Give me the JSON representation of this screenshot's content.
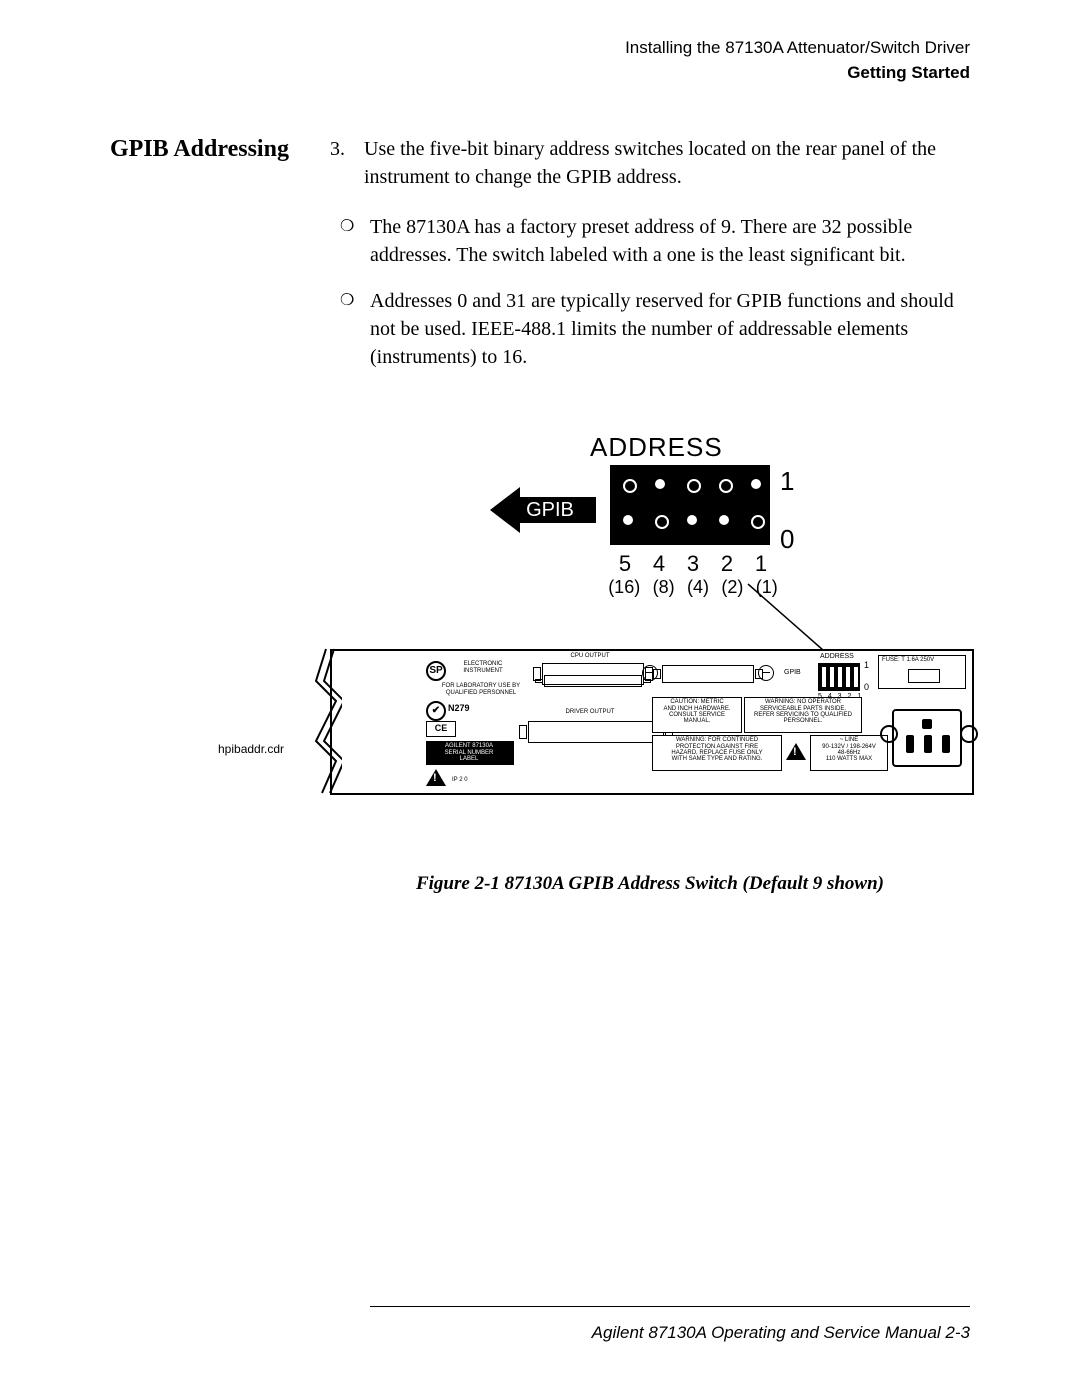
{
  "header": {
    "line1": "Installing the 87130A Attenuator/Switch Driver",
    "line2": "Getting Started"
  },
  "side_heading": "GPIB Addressing",
  "step": {
    "number": "3.",
    "text": "Use the five-bit binary address switches located on the rear panel of the instrument to change the GPIB address."
  },
  "bullets": [
    "The 87130A has a factory preset address of 9. There are 32 possible addresses. The switch labeled with a one is the least significant bit.",
    "Addresses 0 and 31 are typically reserved for GPIB functions and should not be used. IEEE-488.1 limits the number of addressable elements (instruments) to 16."
  ],
  "figure": {
    "address_title": "ADDRESS",
    "gpib_label": "GPIB",
    "one_label": "1",
    "zero_label": "0",
    "bit_numbers": [
      "5",
      "4",
      "3",
      "2",
      "1"
    ],
    "bit_weights": [
      "(16)",
      "(8)",
      "(4)",
      "(2)",
      "(1)"
    ],
    "switch_default_value": 9,
    "switch_bits_up": [
      false,
      true,
      false,
      false,
      true
    ],
    "caption": "Figure 2-1    87130A GPIB Address Switch (Default 9 shown)",
    "source_file_label": "hpibaddr.cdr",
    "panel": {
      "cpu_output_label": "CPU OUTPUT",
      "driver_output_label": "DRIVER OUTPUT",
      "electronic_instrument_label": "ELECTRONIC\nINSTRUMENT",
      "lab_use_label": "FOR LABORATORY USE BY\nQUALIFIED PERSONNEL",
      "n279": "N279",
      "ce": "CE",
      "model_label": "AGILENT 87130A\nSERIAL NUMBER\nLABEL",
      "ip20": "IP 2 0",
      "address_label": "ADDRESS",
      "tiny_bits": "5 4 3 2 1",
      "gpib_mini": "GPIB",
      "fuse_label": "FUSE: T 1.6A 250V",
      "caution_box": "CAUTION:   METRIC\nAND INCH HARDWARE.\nCONSULT SERVICE\nMANUAL.",
      "warning_box1": "WARNING:   NO OPERATOR\nSERVICEABLE PARTS INSIDE.\nREFER SERVICING TO QUALIFIED\nPERSONNEL.",
      "warning_box2": "WARNING:   FOR CONTINUED\nPROTECTION AGAINST FIRE\nHAZARD, REPLACE FUSE ONLY\nWITH SAME TYPE AND RATING.",
      "line_box": "~ LINE\n90-132V / 198-264V\n48-66Hz\n110 WATTS MAX"
    }
  },
  "footer": "Agilent 87130A Operating and Service Manual   2-3",
  "colors": {
    "text": "#000000",
    "background": "#ffffff"
  }
}
